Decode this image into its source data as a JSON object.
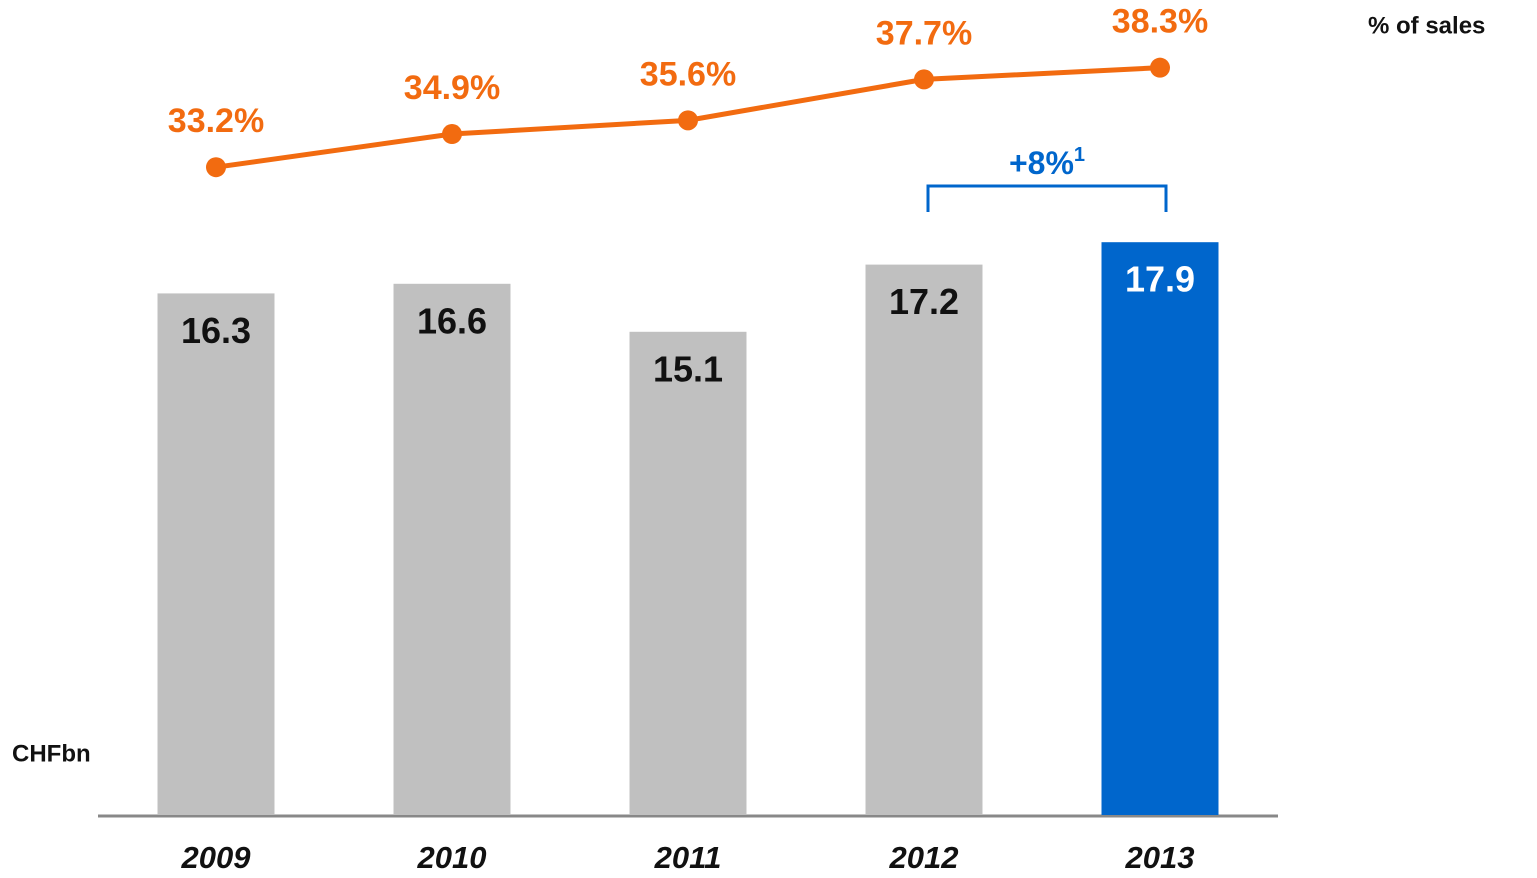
{
  "chart_data": {
    "type": "bar+line",
    "categories": [
      "2009",
      "2010",
      "2011",
      "2012",
      "2013"
    ],
    "series": [
      {
        "type": "bar",
        "values": [
          16.3,
          16.6,
          15.1,
          17.2,
          17.9
        ],
        "colors": [
          "#c0c0c0",
          "#c0c0c0",
          "#c0c0c0",
          "#c0c0c0",
          "#0066cc"
        ],
        "label_colors": [
          "#111111",
          "#111111",
          "#111111",
          "#111111",
          "#ffffff"
        ]
      },
      {
        "type": "line",
        "axis": "y2",
        "color": "#f26b10",
        "values": [
          33.2,
          34.9,
          35.6,
          37.7,
          38.3
        ],
        "value_labels": [
          "33.2%",
          "34.9%",
          "35.6%",
          "37.7%",
          "38.3%"
        ]
      }
    ],
    "ylabel": "CHFbn",
    "y2label": "% of sales",
    "ylim": [
      0,
      25
    ],
    "y2lim": [
      0,
      41
    ],
    "annotation": {
      "text": "+8%",
      "superscript": "1",
      "from": "2012",
      "to": "2013",
      "color": "#0066cc"
    }
  }
}
